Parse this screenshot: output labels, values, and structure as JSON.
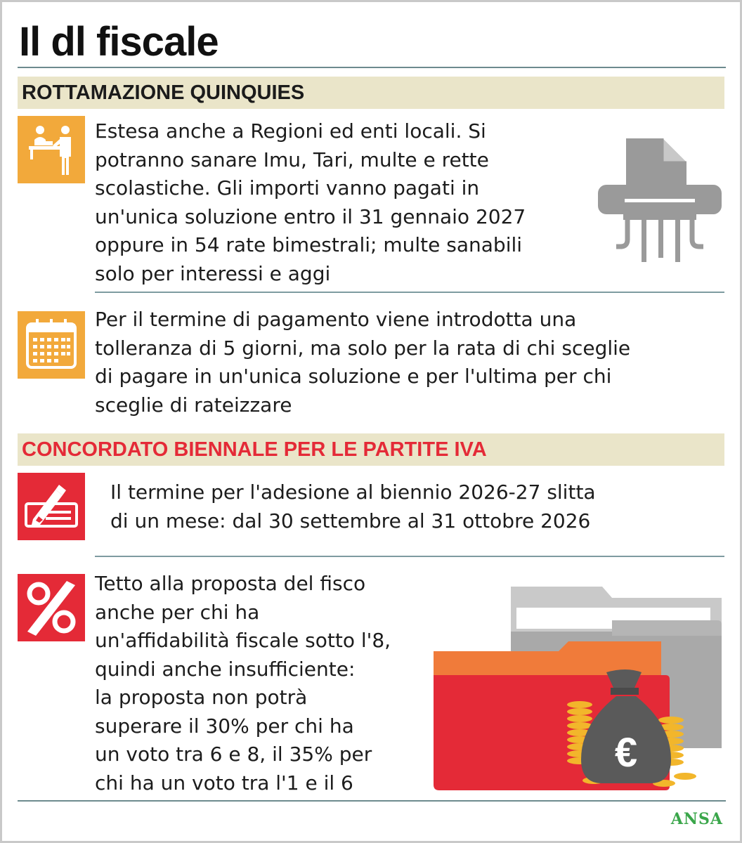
{
  "title": "Il dl fiscale",
  "sections": [
    {
      "heading": "ROTTAMAZIONE QUINQUIES",
      "items": [
        {
          "icon": "office-desk-icon",
          "text": "Estesa anche a Regioni ed enti locali. Si\npotranno sanare Imu, Tari, multe e rette\nscolastiche. Gli importi vanno pagati in\nun'unica soluzione entro il 31 gennaio 2027\noppure in 54 rate bimestrali; multe sanabili\nsolo per interessi e aggi"
        },
        {
          "icon": "calendar-icon",
          "text": "Per il termine di pagamento viene introdotta una\ntolleranza di 5 giorni, ma solo per la rata di chi sceglie\ndi pagare in un'unica soluzione e per l'ultima per chi\nsceglie di rateizzare"
        }
      ]
    },
    {
      "heading": "CONCORDATO BIENNALE PER LE PARTITE IVA",
      "items": [
        {
          "icon": "pen-document-icon",
          "text": "Il termine per l'adesione al biennio 2026-27 slitta\ndi un mese: dal 30 settembre al 31 ottobre 2026"
        },
        {
          "icon": "percent-icon",
          "text": "Tetto alla proposta del fisco\nanche per chi ha\nun'affidabilità fiscale sotto l'8,\nquindi anche insufficiente:\nla proposta non potrà\nsuperare il 30% per chi ha\nun voto tra 6 e 8, il 35% per\nchi ha un voto tra l'1 e il 6"
        }
      ]
    }
  ],
  "illustrations": [
    "paper-shredder-icon",
    "folders-money-bag-icon"
  ],
  "money_symbol": "€",
  "source_logo": "ANSA",
  "colors": {
    "orange": "#f2a93b",
    "red": "#e42a37",
    "section_bar": "#eae5c9",
    "rule": "#6d8a8e",
    "gray_icon": "#9a9a9a",
    "ansa_green": "#3aa64a"
  }
}
